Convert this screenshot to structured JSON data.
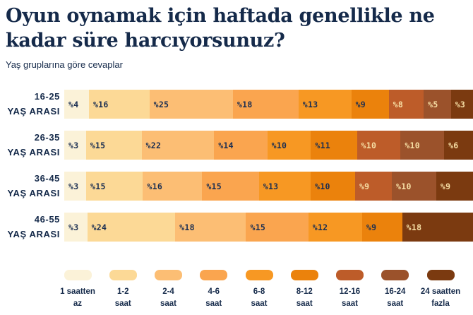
{
  "header": {
    "title": "Oyun oynamak için haftada genellikle ne kadar süre harcıyorsunuz?",
    "subtitle": "Yaş gruplarına göre cevaplar"
  },
  "colors": {
    "background": "#ffffff",
    "text_navy": "#152A4A",
    "segment_text_dark": "#1A2E52",
    "segment_text_light": "#F7DFA5"
  },
  "chart_data": {
    "type": "bar",
    "stacked": true,
    "orientation": "horizontal",
    "unit": "percent",
    "value_prefix": "%",
    "title": "Oyun oynamak için haftada genellikle ne kadar süre harcıyorsunuz?",
    "subtitle": "Yaş gruplarına göre cevaplar",
    "legend_position": "bottom",
    "categories": [
      "1 saatten az",
      "1-2 saat",
      "2-4 saat",
      "4-6 saat",
      "6-8 saat",
      "8-12 saat",
      "12-16 saat",
      "16-24 saat",
      "24 saatten fazla"
    ],
    "category_colors": [
      "#FBF2D8",
      "#FCD996",
      "#FCBE74",
      "#FAA54F",
      "#F79823",
      "#EB820C",
      "#BD5C29",
      "#9B522B",
      "#7B3A10"
    ],
    "legend_lines": [
      [
        "1 saatten",
        "az"
      ],
      [
        "1-2",
        "saat"
      ],
      [
        "2-4",
        "saat"
      ],
      [
        "4-6",
        "saat"
      ],
      [
        "6-8",
        "saat"
      ],
      [
        "8-12",
        "saat"
      ],
      [
        "12-16",
        "saat"
      ],
      [
        "16-24",
        "saat"
      ],
      [
        "24 saatten",
        "fazla"
      ]
    ],
    "groups": [
      {
        "label": "16-25 YAŞ ARASI",
        "label_lines": [
          "16-25",
          "YAŞ ARASI"
        ],
        "values": [
          4,
          16,
          25,
          18,
          13,
          9,
          8,
          5,
          3
        ]
      },
      {
        "label": "26-35 YAŞ ARASI",
        "label_lines": [
          "26-35",
          "YAŞ ARASI"
        ],
        "values": [
          3,
          15,
          22,
          14,
          10,
          11,
          10,
          10,
          6
        ]
      },
      {
        "label": "36-45 YAŞ ARASI",
        "label_lines": [
          "36-45",
          "YAŞ ARASI"
        ],
        "values": [
          3,
          15,
          16,
          15,
          13,
          10,
          9,
          10,
          9
        ]
      },
      {
        "label": "46-55 YAŞ ARASI",
        "label_lines": [
          "46-55",
          "YAŞ ARASI"
        ],
        "values": [
          3,
          24,
          18,
          15,
          12,
          9,
          0,
          0,
          18
        ]
      }
    ]
  }
}
